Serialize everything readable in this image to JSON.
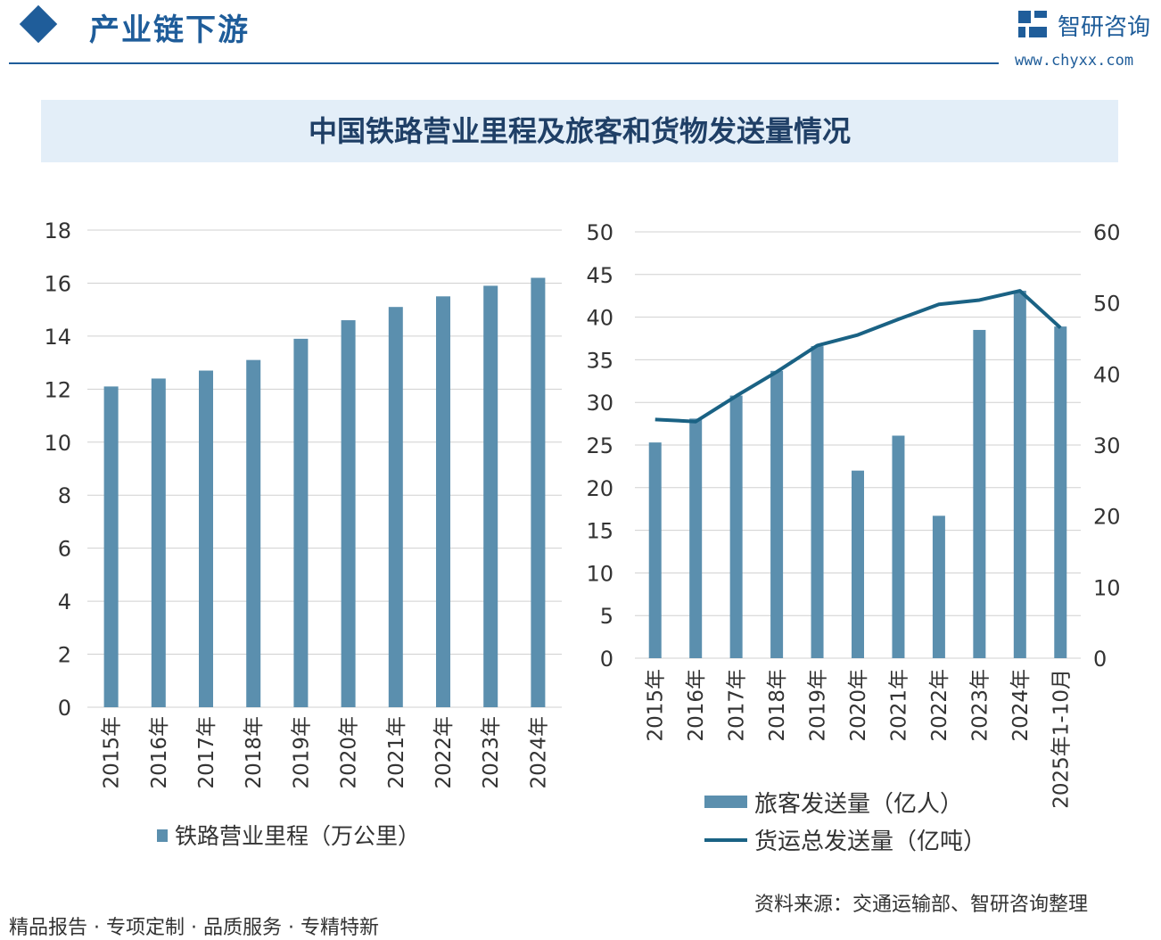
{
  "header": {
    "section_title": "产业链下游",
    "brand_name": "智研咨询",
    "brand_url": "www.chyxx.com"
  },
  "banner": {
    "title": "中国铁路营业里程及旅客和货物发送量情况"
  },
  "footer": {
    "tags": "精品报告 · 专项定制 · 品质服务 · 专精特新",
    "source": "资料来源：交通运输部、智研咨询整理"
  },
  "colors": {
    "brand": "#1f5d9a",
    "bar": "#5b8fae",
    "line": "#1a6284",
    "grid": "#d0d0d0"
  },
  "chart_data": [
    {
      "type": "bar",
      "categories": [
        "2015年",
        "2016年",
        "2017年",
        "2018年",
        "2019年",
        "2020年",
        "2021年",
        "2022年",
        "2023年",
        "2024年"
      ],
      "series": [
        {
          "name": "铁路营业里程（万公里）",
          "values": [
            12.1,
            12.4,
            12.7,
            13.1,
            13.9,
            14.6,
            15.1,
            15.5,
            15.9,
            16.2
          ]
        }
      ],
      "ylim": [
        0,
        18
      ],
      "yticks": [
        "0",
        "2",
        "4",
        "6",
        "8",
        "10",
        "12",
        "14",
        "16",
        "18"
      ],
      "grid": true,
      "legend": "bottom"
    },
    {
      "type": "bar+line",
      "categories": [
        "2015年",
        "2016年",
        "2017年",
        "2018年",
        "2019年",
        "2020年",
        "2021年",
        "2022年",
        "2023年",
        "2024年",
        "2025年1-10月"
      ],
      "series": [
        {
          "name": "旅客发送量（亿人）",
          "type": "bar",
          "axis": "left",
          "values": [
            25.3,
            28.1,
            30.8,
            33.7,
            36.6,
            22.0,
            26.1,
            16.7,
            38.5,
            43.1,
            38.9
          ]
        },
        {
          "name": "货运总发送量（亿吨）",
          "type": "line",
          "axis": "right",
          "values": [
            33.6,
            33.3,
            36.9,
            40.3,
            44.0,
            45.5,
            47.7,
            49.8,
            50.4,
            51.7,
            46.5
          ]
        }
      ],
      "ylim_left": [
        0,
        50
      ],
      "ylim_right": [
        0,
        60
      ],
      "yticks_left": [
        "0",
        "5",
        "10",
        "15",
        "20",
        "25",
        "30",
        "35",
        "40",
        "45",
        "50"
      ],
      "yticks_right": [
        "0",
        "10",
        "20",
        "30",
        "40",
        "50",
        "60"
      ],
      "grid": true,
      "legend": "bottom"
    }
  ]
}
